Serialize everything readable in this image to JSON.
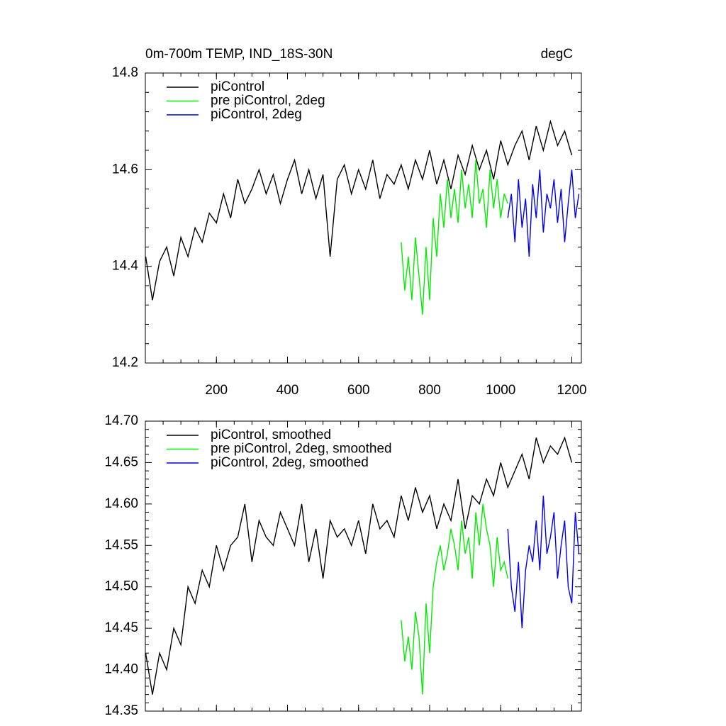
{
  "chart_data": [
    {
      "type": "line",
      "title": "0m-700m TEMP, IND_18S-30N",
      "units_label": "degC",
      "xlim": [
        0,
        1227
      ],
      "ylim": [
        14.2,
        14.8
      ],
      "xticks": [
        200,
        400,
        600,
        800,
        1000,
        1200
      ],
      "yticks": [
        14.2,
        14.4,
        14.6,
        14.8
      ],
      "xtick_labels": true,
      "series": [
        {
          "name": "piControl",
          "color": "#000000",
          "x": [
            1,
            20,
            40,
            60,
            80,
            100,
            120,
            140,
            160,
            180,
            200,
            220,
            240,
            260,
            280,
            300,
            320,
            340,
            360,
            380,
            400,
            420,
            440,
            460,
            480,
            500,
            520,
            540,
            560,
            580,
            600,
            620,
            640,
            660,
            680,
            700,
            720,
            740,
            760,
            780,
            800,
            820,
            840,
            860,
            880,
            900,
            920,
            940,
            960,
            980,
            1000,
            1020,
            1040,
            1060,
            1080,
            1100,
            1120,
            1140,
            1160,
            1180,
            1200
          ],
          "values": [
            14.42,
            14.33,
            14.41,
            14.44,
            14.38,
            14.46,
            14.42,
            14.48,
            14.45,
            14.51,
            14.49,
            14.55,
            14.5,
            14.58,
            14.53,
            14.56,
            14.6,
            14.55,
            14.59,
            14.53,
            14.58,
            14.62,
            14.55,
            14.6,
            14.54,
            14.59,
            14.42,
            14.58,
            14.61,
            14.55,
            14.6,
            14.56,
            14.62,
            14.54,
            14.59,
            14.57,
            14.61,
            14.56,
            14.62,
            14.58,
            14.64,
            14.57,
            14.62,
            14.56,
            14.63,
            14.59,
            14.65,
            14.6,
            14.64,
            14.58,
            14.66,
            14.61,
            14.65,
            14.68,
            14.62,
            14.69,
            14.64,
            14.7,
            14.65,
            14.68,
            14.63
          ]
        },
        {
          "name": "pre piControl, 2deg",
          "color": "#00ee00",
          "x": [
            720,
            730,
            740,
            750,
            760,
            770,
            780,
            790,
            800,
            810,
            820,
            830,
            840,
            850,
            860,
            870,
            880,
            890,
            900,
            910,
            920,
            930,
            940,
            950,
            960,
            970,
            980,
            990,
            1000,
            1010,
            1020
          ],
          "values": [
            14.45,
            14.35,
            14.42,
            14.33,
            14.46,
            14.38,
            14.3,
            14.44,
            14.33,
            14.5,
            14.42,
            14.55,
            14.48,
            14.58,
            14.5,
            14.56,
            14.49,
            14.6,
            14.52,
            14.57,
            14.5,
            14.62,
            14.53,
            14.56,
            14.48,
            14.6,
            14.52,
            14.58,
            14.5,
            14.55,
            14.53
          ]
        },
        {
          "name": "piControl, 2deg",
          "color": "#0000ee",
          "x": [
            1020,
            1030,
            1040,
            1050,
            1060,
            1070,
            1080,
            1090,
            1100,
            1110,
            1120,
            1130,
            1140,
            1150,
            1160,
            1170,
            1180,
            1190,
            1200,
            1210,
            1220
          ],
          "values": [
            14.5,
            14.55,
            14.45,
            14.58,
            14.48,
            14.54,
            14.42,
            14.57,
            14.5,
            14.6,
            14.47,
            14.55,
            14.52,
            14.58,
            14.49,
            14.56,
            14.45,
            14.53,
            14.6,
            14.5,
            14.55
          ]
        }
      ]
    },
    {
      "type": "line",
      "xlim": [
        0,
        1227
      ],
      "ylim": [
        14.35,
        14.7
      ],
      "xticks": [
        200,
        400,
        600,
        800,
        1000,
        1200
      ],
      "yticks": [
        14.35,
        {
          "value": 14.4,
          "label": "14.40"
        },
        14.45,
        {
          "value": 14.5,
          "label": "14.50"
        },
        14.55,
        {
          "value": 14.6,
          "label": "14.60"
        },
        14.65,
        {
          "value": 14.7,
          "label": "14.70"
        }
      ],
      "xtick_labels": false,
      "series": [
        {
          "name": "piControl, smoothed",
          "color": "#000000",
          "x": [
            1,
            20,
            40,
            60,
            80,
            100,
            120,
            140,
            160,
            180,
            200,
            220,
            240,
            260,
            280,
            300,
            320,
            340,
            360,
            380,
            400,
            420,
            440,
            460,
            480,
            500,
            520,
            540,
            560,
            580,
            600,
            620,
            640,
            660,
            680,
            700,
            720,
            740,
            760,
            780,
            800,
            820,
            840,
            860,
            880,
            900,
            920,
            940,
            960,
            980,
            1000,
            1020,
            1040,
            1060,
            1080,
            1100,
            1120,
            1140,
            1160,
            1180,
            1200
          ],
          "values": [
            14.42,
            14.37,
            14.42,
            14.4,
            14.45,
            14.43,
            14.5,
            14.48,
            14.52,
            14.5,
            14.55,
            14.52,
            14.55,
            14.56,
            14.6,
            14.53,
            14.58,
            14.56,
            14.55,
            14.59,
            14.57,
            14.55,
            14.6,
            14.53,
            14.57,
            14.51,
            14.58,
            14.56,
            14.57,
            14.55,
            14.58,
            14.54,
            14.6,
            14.57,
            14.58,
            14.56,
            14.61,
            14.58,
            14.62,
            14.59,
            14.61,
            14.57,
            14.6,
            14.58,
            14.63,
            14.57,
            14.61,
            14.6,
            14.63,
            14.61,
            14.65,
            14.62,
            14.64,
            14.66,
            14.63,
            14.68,
            14.65,
            14.67,
            14.66,
            14.68,
            14.65
          ]
        },
        {
          "name": "pre piControl, 2deg, smoothed",
          "color": "#00ee00",
          "x": [
            720,
            730,
            740,
            750,
            760,
            770,
            780,
            790,
            800,
            810,
            820,
            830,
            840,
            850,
            860,
            870,
            880,
            890,
            900,
            910,
            920,
            930,
            940,
            950,
            960,
            970,
            980,
            990,
            1000,
            1010,
            1020
          ],
          "values": [
            14.46,
            14.41,
            14.44,
            14.4,
            14.47,
            14.44,
            14.37,
            14.48,
            14.42,
            14.5,
            14.53,
            14.55,
            14.52,
            14.54,
            14.57,
            14.55,
            14.52,
            14.58,
            14.54,
            14.56,
            14.51,
            14.59,
            14.55,
            14.6,
            14.57,
            14.55,
            14.5,
            14.56,
            14.52,
            14.53,
            14.51
          ]
        },
        {
          "name": "piControl, 2deg, smoothed",
          "color": "#0000ee",
          "x": [
            1020,
            1030,
            1040,
            1050,
            1060,
            1070,
            1080,
            1090,
            1100,
            1110,
            1120,
            1130,
            1140,
            1150,
            1160,
            1170,
            1180,
            1190,
            1200,
            1210,
            1220
          ],
          "values": [
            14.57,
            14.5,
            14.47,
            14.53,
            14.45,
            14.52,
            14.55,
            14.53,
            14.58,
            14.52,
            14.61,
            14.54,
            14.56,
            14.59,
            14.51,
            14.55,
            14.58,
            14.5,
            14.48,
            14.59,
            14.54
          ]
        }
      ]
    }
  ]
}
